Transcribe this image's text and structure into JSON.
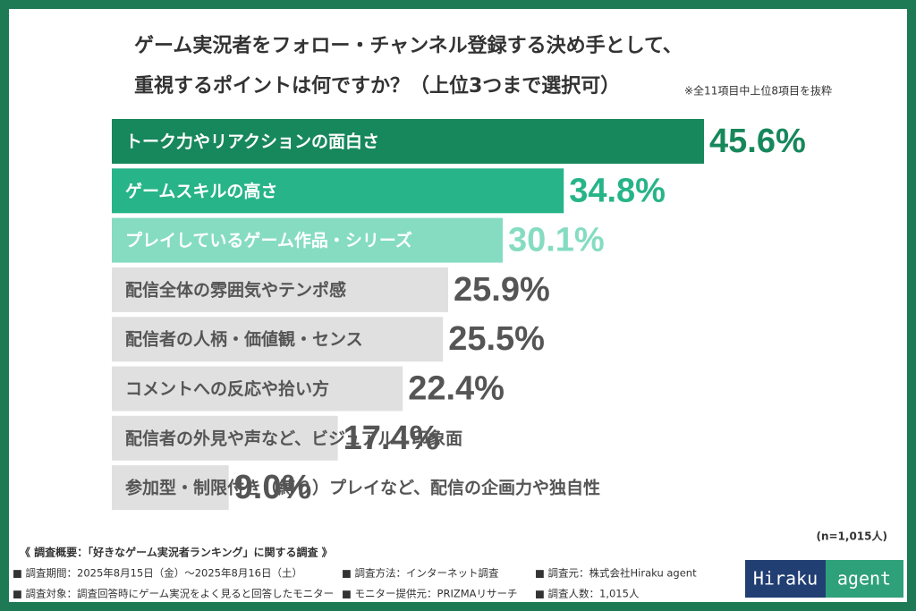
{
  "chart_data": {
    "type": "bar",
    "title": [
      "ゲーム実況者をフォロー・チャンネル登録する決め手として、",
      "重視するポイントは何ですか？（上位3つまで選択可）"
    ],
    "note": "※全11項目中上位8項目を抜粋",
    "sample_size": "(n=1,015人)",
    "categories": [
      "トーク力やリアクションの面白さ",
      "ゲームスキルの高さ",
      "プレイしているゲーム作品・シリーズ",
      "配信全体の雰囲気やテンポ感",
      "配信者の人柄・価値観・センス",
      "コメントへの反応や拾い方",
      "配信者の外見や声など、ビジュアル・印象面",
      "参加型・制限付き（縛り）プレイなど、配信の企画力や独自性"
    ],
    "values": [
      45.6,
      34.8,
      30.1,
      25.9,
      25.5,
      22.4,
      17.4,
      9.0
    ],
    "value_labels": [
      "45.6%",
      "34.8%",
      "30.1%",
      "25.9%",
      "25.5%",
      "22.4%",
      "17.4%",
      "9.0%"
    ],
    "colors": [
      "#17875c",
      "#27b488",
      "#85dcc1",
      "#e0e0e0",
      "#e0e0e0",
      "#e0e0e0",
      "#e0e0e0",
      "#e0e0e0"
    ]
  },
  "footer": {
    "heading": "《 調査概要：「好きなゲーム実況者ランキング」に関する調査 》",
    "items": [
      "■ 調査期間：2025年8月15日（金）～2025年8月16日（土）",
      "■ 調査方法：インターネット調査",
      "■ 調査元：株式会社Hiraku agent",
      "■ 調査対象：調査回答時にゲーム実況をよく見ると回答したモニター",
      "■ モニター提供元：PRIZMAリサーチ",
      "■ 調査人数：1,015人"
    ]
  },
  "logo": {
    "left": "Hiraku",
    "right": "agent"
  }
}
